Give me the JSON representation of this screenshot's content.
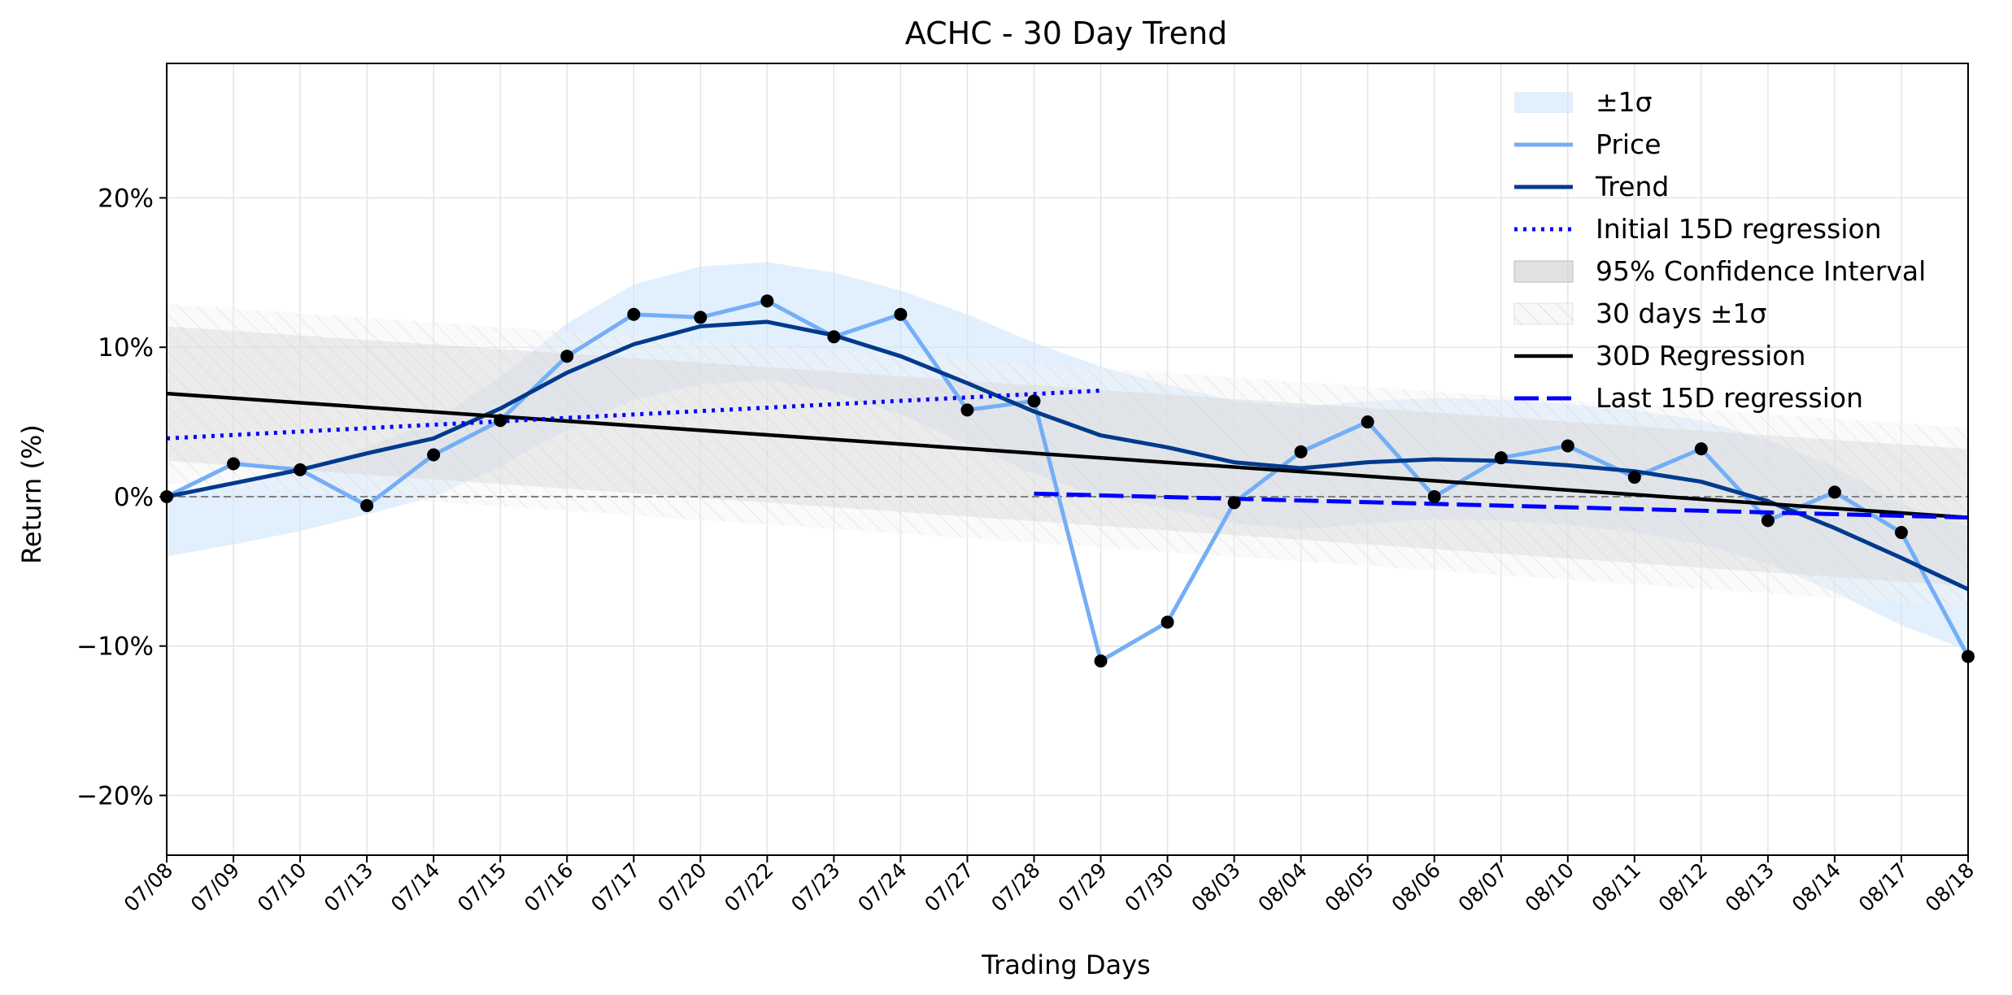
{
  "chart_data": {
    "type": "line",
    "title": "ACHC - 30 Day Trend",
    "xlabel": "Trading Days",
    "ylabel": "Return (%)",
    "categories": [
      "07/08",
      "07/09",
      "07/10",
      "07/13",
      "07/14",
      "07/15",
      "07/16",
      "07/17",
      "07/20",
      "07/22",
      "07/23",
      "07/24",
      "07/27",
      "07/28",
      "07/29",
      "07/30",
      "08/03",
      "08/04",
      "08/05",
      "08/06",
      "08/07",
      "08/10",
      "08/11",
      "08/12",
      "08/13",
      "08/14",
      "08/17",
      "08/18"
    ],
    "ylim": [
      -24,
      29
    ],
    "yticks": [
      -20,
      -10,
      0,
      10,
      20
    ],
    "ytick_labels": [
      "−20%",
      "−10%",
      "0%",
      "10%",
      "20%"
    ],
    "grid": true,
    "legend_position": "top-right",
    "legend": [
      "±1σ",
      "Price",
      "Trend",
      "Initial 15D regression",
      "95% Confidence Interval",
      "30 days ±1σ",
      "30D Regression",
      "Last 15D regression"
    ],
    "series": [
      {
        "name": "Price",
        "color": "#74aef6",
        "values": [
          0.0,
          2.2,
          1.8,
          -0.6,
          2.8,
          5.1,
          9.4,
          12.2,
          12.0,
          13.1,
          10.7,
          12.2,
          5.8,
          6.4,
          -11.0,
          -8.4,
          -0.4,
          3.0,
          5.0,
          0.0,
          2.6,
          3.4,
          1.3,
          3.2,
          -1.6,
          0.3,
          -2.4,
          -10.7
        ]
      },
      {
        "name": "Trend",
        "color": "#003a8c",
        "values": [
          0.0,
          0.9,
          1.8,
          2.9,
          3.9,
          5.9,
          8.3,
          10.2,
          11.4,
          11.7,
          10.8,
          9.4,
          7.6,
          5.7,
          4.1,
          3.3,
          2.3,
          1.9,
          2.3,
          2.5,
          2.4,
          2.1,
          1.7,
          1.0,
          -0.3,
          -2.1,
          -4.1,
          -6.2
        ]
      },
      {
        "name": "±1σ",
        "color": "#dcebfb",
        "upper": [
          -0.1,
          0.8,
          1.8,
          3.3,
          5.1,
          8.0,
          11.6,
          14.2,
          15.4,
          15.7,
          15.0,
          13.8,
          12.2,
          10.3,
          8.7,
          7.5,
          6.4,
          6.0,
          6.4,
          6.6,
          6.5,
          6.2,
          5.8,
          5.1,
          3.8,
          2.0,
          -0.5,
          -2.0
        ],
        "lower": [
          -4.0,
          -3.2,
          -2.3,
          -1.2,
          0.0,
          2.0,
          4.5,
          6.5,
          7.5,
          7.8,
          7.0,
          5.5,
          3.5,
          1.5,
          0.0,
          -0.8,
          -1.8,
          -2.2,
          -1.8,
          -1.5,
          -1.6,
          -1.9,
          -2.4,
          -3.2,
          -4.5,
          -6.4,
          -8.6,
          -10.3
        ]
      },
      {
        "name": "30D Regression",
        "color": "#000000",
        "x_range": [
          "07/08",
          "08/18"
        ],
        "y_range": [
          6.9,
          -1.4
        ]
      },
      {
        "name": "95% Confidence Interval",
        "color": "#cfcfcf",
        "upper": [
          11.4,
          3.2
        ],
        "lower": [
          2.4,
          -6.0
        ]
      },
      {
        "name": "30 days ±1σ",
        "color": "#d8d8d8",
        "upper": [
          12.9,
          4.6
        ],
        "lower": [
          0.9,
          -7.4
        ]
      },
      {
        "name": "Initial 15D regression",
        "color": "#0000ff",
        "x_range": [
          "07/08",
          "07/29"
        ],
        "y_range": [
          3.9,
          7.1
        ]
      },
      {
        "name": "Last 15D regression",
        "color": "#0000ff",
        "x_range": [
          "07/28",
          "08/18"
        ],
        "y_range": [
          0.2,
          -1.4
        ]
      }
    ],
    "reference_line": {
      "y": 0,
      "color": "#808080",
      "style": "dashed"
    }
  }
}
